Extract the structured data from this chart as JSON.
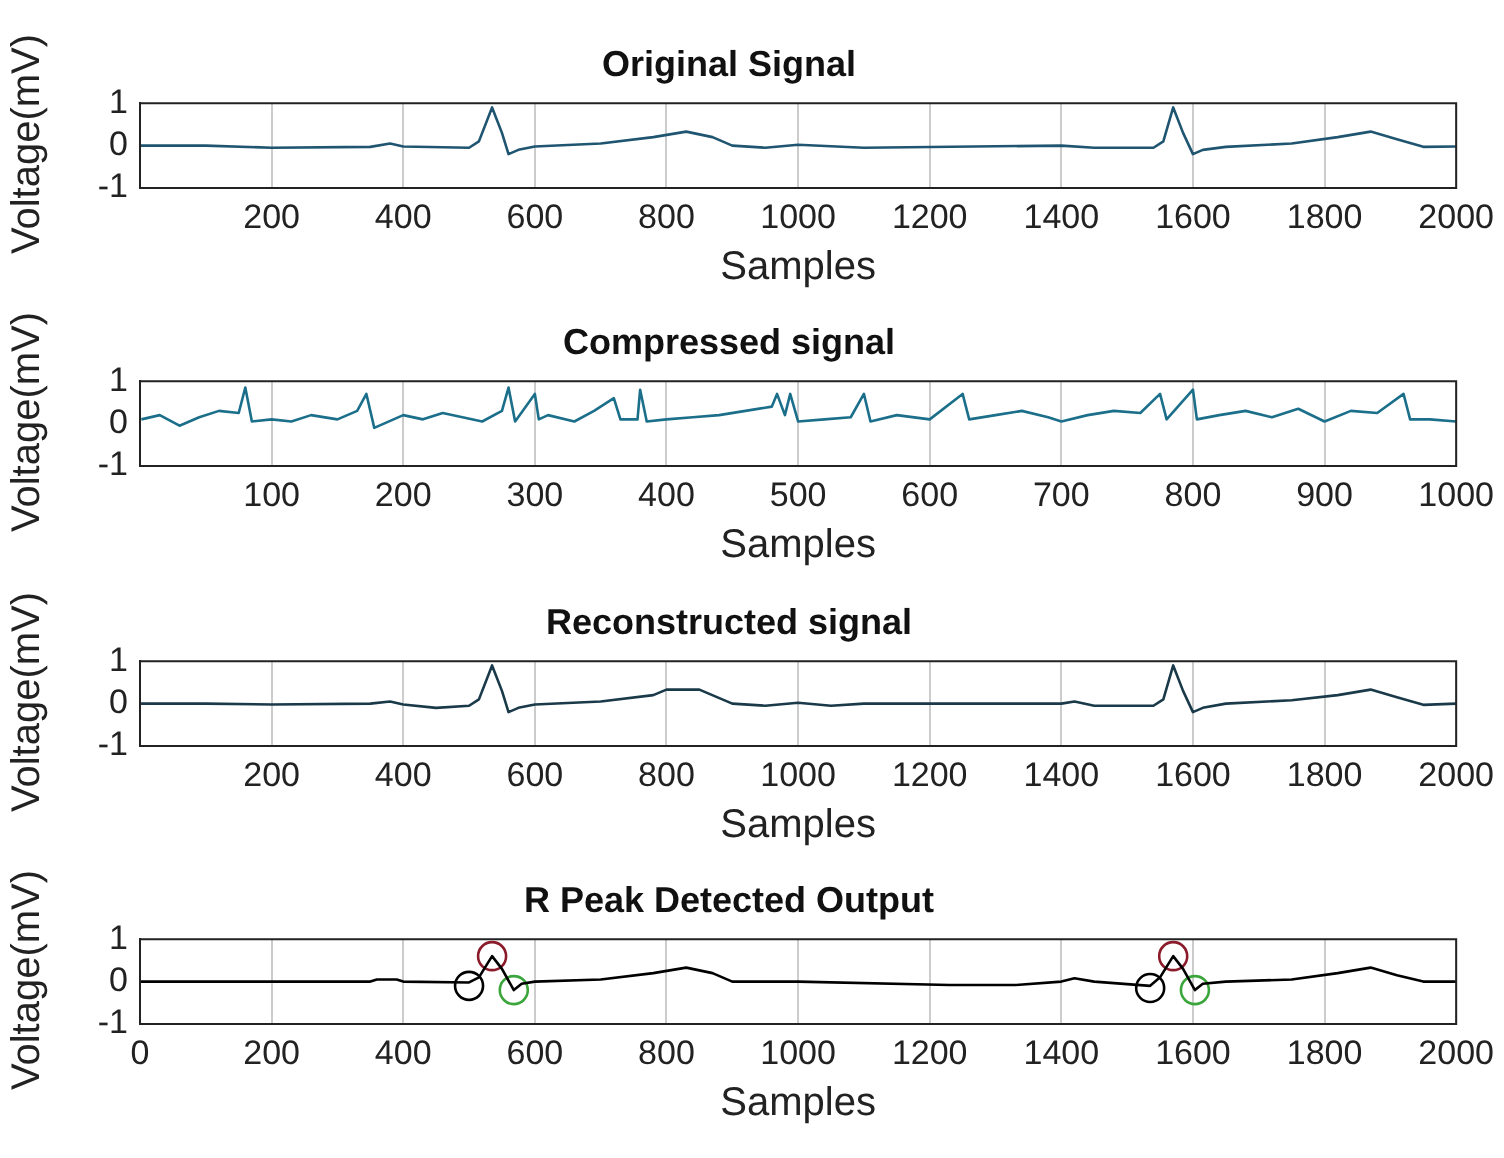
{
  "chart_data": [
    {
      "type": "line",
      "title": "Original Signal",
      "xlabel": "Samples",
      "ylabel": "Voltage(mV)",
      "xlim": [
        0,
        2000
      ],
      "xticks": [
        200,
        400,
        600,
        800,
        1000,
        1200,
        1400,
        1600,
        1800,
        2000
      ],
      "ylim": [
        -1,
        1
      ],
      "yticks": [
        -1,
        0,
        1
      ],
      "grid": "x",
      "series": [
        {
          "color": "#1f5570",
          "x": [
            0,
            100,
            200,
            350,
            380,
            400,
            500,
            515,
            535,
            550,
            560,
            575,
            600,
            700,
            780,
            830,
            870,
            900,
            950,
            1000,
            1100,
            1400,
            1450,
            1540,
            1555,
            1570,
            1585,
            1600,
            1615,
            1650,
            1750,
            1820,
            1870,
            1910,
            1950,
            2000
          ],
          "values": [
            0,
            0,
            -0.05,
            -0.03,
            0.05,
            -0.02,
            -0.05,
            0.1,
            0.9,
            0.3,
            -0.2,
            -0.1,
            -0.02,
            0.05,
            0.2,
            0.33,
            0.2,
            0,
            -0.05,
            0.02,
            -0.05,
            0,
            -0.05,
            -0.05,
            0.1,
            0.9,
            0.3,
            -0.2,
            -0.1,
            -0.03,
            0.05,
            0.2,
            0.33,
            0.15,
            -0.03,
            -0.02
          ]
        }
      ]
    },
    {
      "type": "line",
      "title": "Compressed signal",
      "xlabel": "Samples",
      "ylabel": "Voltage(mV)",
      "xlim": [
        0,
        1000
      ],
      "xticks": [
        100,
        200,
        300,
        400,
        500,
        600,
        700,
        800,
        900,
        1000
      ],
      "ylim": [
        -1,
        1
      ],
      "yticks": [
        -1,
        0,
        1
      ],
      "grid": "x",
      "series": [
        {
          "color": "#1b6f8a",
          "x": [
            1,
            15,
            30,
            45,
            60,
            75,
            80,
            85,
            100,
            115,
            130,
            150,
            165,
            172,
            178,
            200,
            215,
            230,
            245,
            260,
            275,
            280,
            285,
            300,
            303,
            310,
            330,
            345,
            360,
            365,
            378,
            380,
            385,
            400,
            420,
            440,
            460,
            480,
            484,
            490,
            494,
            500,
            520,
            540,
            550,
            555,
            575,
            600,
            625,
            630,
            650,
            670,
            690,
            700,
            720,
            740,
            760,
            775,
            780,
            800,
            803,
            820,
            840,
            860,
            880,
            900,
            920,
            940,
            960,
            965,
            980,
            1000
          ],
          "values": [
            0.1,
            0.2,
            -0.05,
            0.15,
            0.3,
            0.25,
            0.85,
            0.05,
            0.1,
            0.05,
            0.2,
            0.1,
            0.3,
            0.7,
            -0.1,
            0.2,
            0.1,
            0.25,
            0.15,
            0.05,
            0.3,
            0.85,
            0.05,
            0.7,
            0.1,
            0.2,
            0.05,
            0.3,
            0.6,
            0.1,
            0.1,
            0.8,
            0.05,
            0.1,
            0.15,
            0.2,
            0.3,
            0.4,
            0.7,
            0.2,
            0.7,
            0.05,
            0.1,
            0.15,
            0.7,
            0.05,
            0.2,
            0.1,
            0.7,
            0.1,
            0.2,
            0.3,
            0.15,
            0.05,
            0.2,
            0.3,
            0.25,
            0.7,
            0.1,
            0.8,
            0.1,
            0.2,
            0.3,
            0.15,
            0.35,
            0.05,
            0.3,
            0.25,
            0.7,
            0.1,
            0.1,
            0.05
          ]
        }
      ]
    },
    {
      "type": "line",
      "title": "Reconstructed signal",
      "xlabel": "Samples",
      "ylabel": "Voltage(mV)",
      "xlim": [
        0,
        2000
      ],
      "xticks": [
        200,
        400,
        600,
        800,
        1000,
        1200,
        1400,
        1600,
        1800,
        2000
      ],
      "ylim": [
        -1,
        1
      ],
      "yticks": [
        -1,
        0,
        1
      ],
      "grid": "x",
      "series": [
        {
          "color": "#1a3a4a",
          "x": [
            0,
            100,
            200,
            350,
            380,
            400,
            450,
            500,
            515,
            535,
            550,
            560,
            575,
            600,
            700,
            780,
            800,
            850,
            900,
            950,
            1000,
            1050,
            1100,
            1400,
            1420,
            1450,
            1540,
            1555,
            1570,
            1585,
            1600,
            1615,
            1650,
            1750,
            1820,
            1870,
            1910,
            1950,
            2000
          ],
          "values": [
            0,
            0,
            -0.02,
            0,
            0.05,
            -0.02,
            -0.1,
            -0.05,
            0.1,
            0.9,
            0.3,
            -0.2,
            -0.1,
            -0.02,
            0.05,
            0.2,
            0.33,
            0.33,
            0,
            -0.05,
            0.02,
            -0.05,
            0,
            0,
            0.05,
            -0.05,
            -0.05,
            0.1,
            0.9,
            0.3,
            -0.2,
            -0.1,
            0,
            0.08,
            0.2,
            0.33,
            0.15,
            -0.03,
            0
          ]
        }
      ]
    },
    {
      "type": "line",
      "title": "R Peak Detected Output",
      "xlabel": "Samples",
      "ylabel": "Voltage(mV)",
      "xlim": [
        0,
        2000
      ],
      "xticks": [
        0,
        200,
        400,
        600,
        800,
        1000,
        1200,
        1400,
        1600,
        1800,
        2000
      ],
      "ylim": [
        -1,
        1
      ],
      "yticks": [
        -1,
        0,
        1
      ],
      "grid": "x",
      "series": [
        {
          "color": "#000000",
          "x": [
            0,
            350,
            360,
            390,
            400,
            500,
            515,
            535,
            550,
            568,
            580,
            600,
            700,
            780,
            830,
            870,
            900,
            1000,
            1230,
            1330,
            1400,
            1420,
            1450,
            1535,
            1550,
            1570,
            1585,
            1603,
            1615,
            1650,
            1750,
            1820,
            1870,
            1910,
            1950,
            2000
          ],
          "values": [
            0,
            0,
            0.05,
            0.05,
            0,
            -0.02,
            0.1,
            0.6,
            0.3,
            -0.2,
            -0.05,
            0,
            0.05,
            0.2,
            0.33,
            0.2,
            0,
            0,
            -0.08,
            -0.08,
            0,
            0.08,
            0,
            -0.1,
            0.1,
            0.6,
            0.3,
            -0.2,
            -0.05,
            0,
            0.05,
            0.2,
            0.33,
            0.15,
            0,
            0
          ]
        },
        {
          "type": "scatter",
          "marker": "circle",
          "color": "#000000",
          "x": [
            500,
            1535
          ],
          "values": [
            -0.1,
            -0.15
          ]
        },
        {
          "type": "scatter",
          "marker": "circle",
          "color": "#8b1a2a",
          "x": [
            535,
            1570
          ],
          "values": [
            0.6,
            0.6
          ]
        },
        {
          "type": "scatter",
          "marker": "circle",
          "color": "#3aa53a",
          "x": [
            568,
            1603
          ],
          "values": [
            -0.2,
            -0.2
          ]
        }
      ]
    }
  ]
}
